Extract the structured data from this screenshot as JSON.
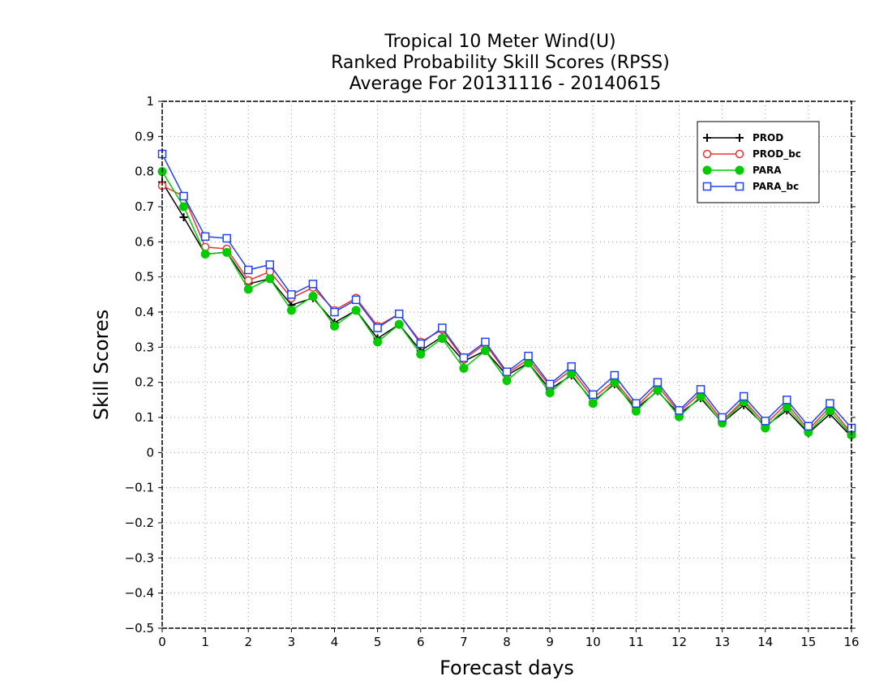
{
  "chart_data": {
    "type": "line",
    "title_lines": [
      "Tropical 10 Meter Wind(U)",
      "Ranked Probability Skill Scores (RPSS)",
      "Average For 20131116 - 20140615"
    ],
    "xlabel": "Forecast days",
    "ylabel": "Skill Scores",
    "xlim": [
      0,
      16
    ],
    "ylim": [
      -0.5,
      1
    ],
    "x_ticks": [
      "0",
      "1",
      "2",
      "3",
      "4",
      "5",
      "6",
      "7",
      "8",
      "9",
      "10",
      "11",
      "12",
      "13",
      "14",
      "15",
      "16"
    ],
    "y_ticks": [
      "−0.5",
      "−0.4",
      "−0.3",
      "−0.2",
      "−0.1",
      "0",
      "0.1",
      "0.2",
      "0.3",
      "0.4",
      "0.5",
      "0.6",
      "0.7",
      "0.8",
      "0.9",
      "1"
    ],
    "grid": true,
    "legend_position": "top-right",
    "x": [
      0,
      0.5,
      1,
      1.5,
      2,
      2.5,
      3,
      3.5,
      4,
      4.5,
      5,
      5.5,
      6,
      6.5,
      7,
      7.5,
      8,
      8.5,
      9,
      9.5,
      10,
      10.5,
      11,
      11.5,
      12,
      12.5,
      13,
      13.5,
      14,
      14.5,
      15,
      15.5,
      16
    ],
    "series": [
      {
        "name": "PROD",
        "color": "#000000",
        "marker": "plus",
        "values": [
          0.77,
          0.67,
          0.565,
          0.57,
          0.48,
          0.495,
          0.42,
          0.44,
          0.37,
          0.405,
          0.325,
          0.365,
          0.29,
          0.33,
          0.26,
          0.29,
          0.22,
          0.255,
          0.18,
          0.22,
          0.145,
          0.195,
          0.125,
          0.175,
          0.11,
          0.155,
          0.085,
          0.135,
          0.075,
          0.12,
          0.055,
          0.11,
          0.045
        ]
      },
      {
        "name": "PROD_bc",
        "color": "#ee3333",
        "marker": "open-circle",
        "values": [
          0.76,
          0.73,
          0.585,
          0.58,
          0.49,
          0.515,
          0.44,
          0.47,
          0.405,
          0.44,
          0.36,
          0.395,
          0.315,
          0.35,
          0.265,
          0.31,
          0.225,
          0.265,
          0.19,
          0.235,
          0.155,
          0.205,
          0.13,
          0.19,
          0.115,
          0.17,
          0.09,
          0.15,
          0.08,
          0.14,
          0.065,
          0.13,
          0.055
        ]
      },
      {
        "name": "PARA",
        "color": "#00cc00",
        "marker": "filled-circle",
        "values": [
          0.8,
          0.7,
          0.565,
          0.57,
          0.465,
          0.495,
          0.405,
          0.445,
          0.36,
          0.405,
          0.315,
          0.365,
          0.28,
          0.325,
          0.24,
          0.29,
          0.205,
          0.255,
          0.17,
          0.225,
          0.14,
          0.2,
          0.118,
          0.178,
          0.102,
          0.16,
          0.084,
          0.145,
          0.07,
          0.13,
          0.058,
          0.12,
          0.05
        ]
      },
      {
        "name": "PARA_bc",
        "color": "#2244ee",
        "marker": "open-square",
        "values": [
          0.85,
          0.73,
          0.615,
          0.61,
          0.52,
          0.535,
          0.45,
          0.48,
          0.4,
          0.435,
          0.355,
          0.395,
          0.31,
          0.355,
          0.27,
          0.315,
          0.23,
          0.275,
          0.195,
          0.245,
          0.165,
          0.22,
          0.14,
          0.2,
          0.12,
          0.18,
          0.1,
          0.16,
          0.09,
          0.15,
          0.075,
          0.14,
          0.07
        ]
      }
    ]
  }
}
